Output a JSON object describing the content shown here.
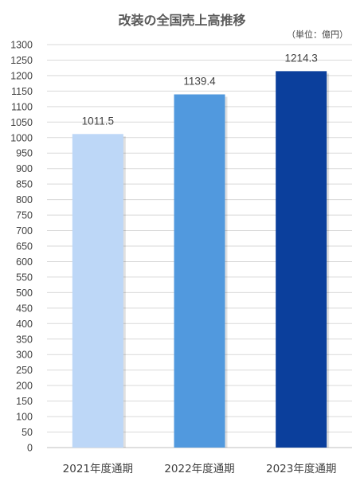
{
  "chart_data": {
    "type": "bar",
    "title": "改装の全国売上高推移",
    "unit_note": "（単位：億円）",
    "categories": [
      "2021年度通期",
      "2022年度通期",
      "2023年度通期"
    ],
    "values": [
      1011.5,
      1139.4,
      1214.3
    ],
    "data_labels": [
      "1011.5",
      "1139.4",
      "1214.3"
    ],
    "bar_colors": [
      "#bdd7f7",
      "#5199de",
      "#0b3f9c"
    ],
    "ylim": [
      0,
      1300
    ],
    "ytick_step": 50,
    "grid": true,
    "legend": "none"
  }
}
